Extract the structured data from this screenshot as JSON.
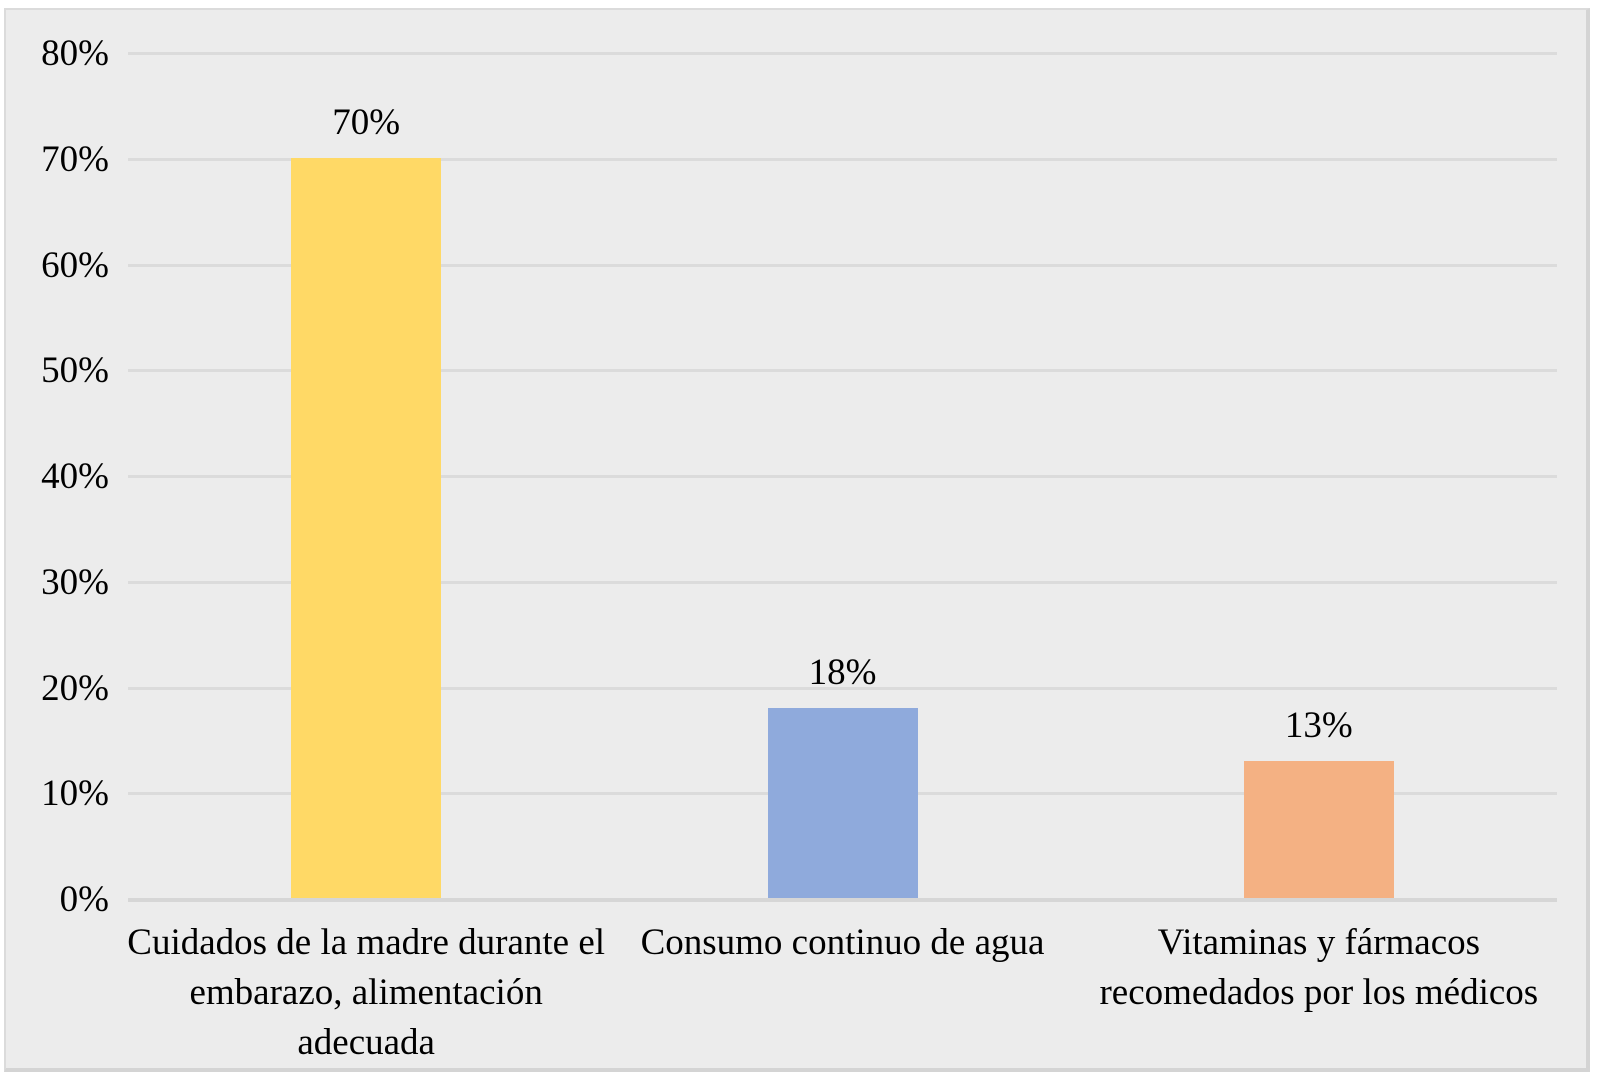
{
  "chart_data": {
    "type": "bar",
    "title": "",
    "xlabel": "",
    "ylabel": "",
    "categories": [
      "Cuidados de la madre durante el embarazo, alimentación adecuada",
      "Consumo continuo de agua",
      "Vitaminas y fármacos recomedados por los médicos"
    ],
    "values": [
      70,
      18,
      13
    ],
    "data_labels": [
      "70%",
      "18%",
      "13%"
    ],
    "bar_colors": [
      "#FFD966",
      "#8FAADC",
      "#F4B183"
    ],
    "ylim": [
      0,
      80
    ],
    "ytick_step": 10,
    "yticks": [
      "0%",
      "10%",
      "20%",
      "30%",
      "40%",
      "50%",
      "60%",
      "70%",
      "80%"
    ],
    "grid": true,
    "legend": false
  },
  "colors": {
    "page_background": "#FFFFFF",
    "chart_background": "#ECECEC",
    "gridline": "#DBDBDB",
    "axis_line": "#D6D6D6",
    "frame_border": "#DBDBDB",
    "text": "#000000"
  }
}
